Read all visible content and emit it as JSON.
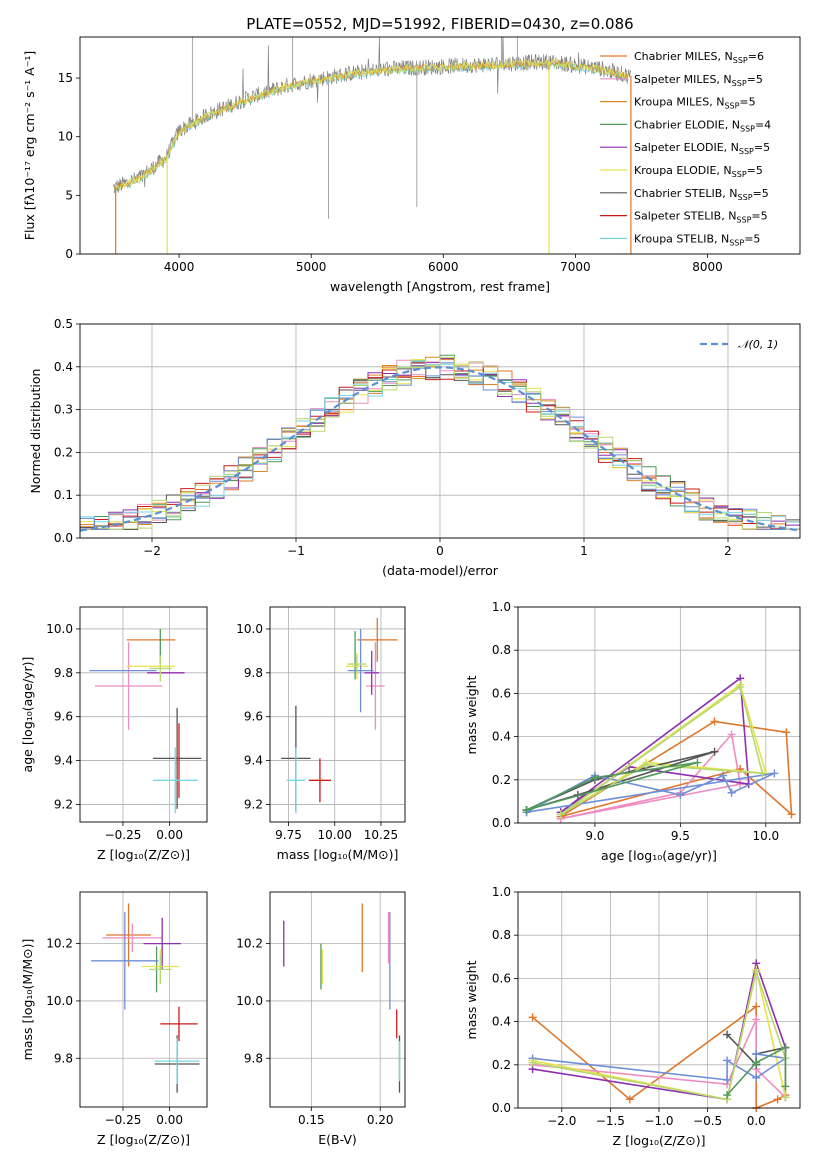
{
  "figure_title": "PLATE=0552, MJD=51992, FIBERID=0430, z=0.086",
  "colors": [
    "#e0762a",
    "#ef8cc0",
    "#d98a22",
    "#4f9a5a",
    "#8e2fb0",
    "#e6e24a",
    "#555555",
    "#cc1a1a",
    "#77d6e6",
    "#6f8fd8",
    "#b8d872"
  ],
  "series_names": [
    "Chabrier MILES",
    "Salpeter MILES",
    "Kroupa MILES",
    "Chabrier ELODIE",
    "Salpeter ELODIE",
    "Kroupa ELODIE",
    "Chabrier STELIB",
    "Salpeter STELIB",
    "Kroupa STELIB"
  ],
  "chart_data": [
    {
      "id": "spectrum",
      "type": "line",
      "title": "PLATE=0552, MJD=51992, FIBERID=0430, z=0.086",
      "xlabel": "wavelength [Angstrom, rest frame]",
      "ylabel": "Flux [fλ10⁻¹⁷ erg cm⁻² s⁻¹ A⁻¹]",
      "xlim": [
        3250,
        8700
      ],
      "ylim": [
        0,
        18.5
      ],
      "xticks": [
        4000,
        5000,
        6000,
        7000,
        8000
      ],
      "yticks": [
        0,
        5,
        10,
        15
      ],
      "continuum": {
        "x": [
          3500,
          3700,
          3900,
          4000,
          4200,
          4500,
          4800,
          5000,
          5300,
          5600,
          6000,
          6400,
          6800,
          7200,
          7400
        ],
        "y": [
          5.6,
          6.5,
          8.2,
          10.5,
          11.8,
          13.2,
          14.3,
          14.8,
          15.4,
          15.8,
          16.0,
          16.2,
          16.4,
          15.8,
          15.2
        ]
      },
      "legend": [
        {
          "label": "Chabrier MILES, N",
          "sub": "SSP",
          "suffix": "=6"
        },
        {
          "label": "Salpeter MILES, N",
          "sub": "SSP",
          "suffix": "=5"
        },
        {
          "label": "Kroupa MILES, N",
          "sub": "SSP",
          "suffix": "=5"
        },
        {
          "label": "Chabrier ELODIE, N",
          "sub": "SSP",
          "suffix": "=4"
        },
        {
          "label": "Salpeter ELODIE, N",
          "sub": "SSP",
          "suffix": "=5"
        },
        {
          "label": "Kroupa ELODIE, N",
          "sub": "SSP",
          "suffix": "=5"
        },
        {
          "label": "Chabrier STELIB, N",
          "sub": "SSP",
          "suffix": "=5"
        },
        {
          "label": "Salpeter STELIB, N",
          "sub": "SSP",
          "suffix": "=5"
        },
        {
          "label": "Kroupa STELIB, N",
          "sub": "SSP",
          "suffix": "=5"
        }
      ],
      "legend_position": "top-right"
    },
    {
      "id": "residuals",
      "type": "histogram",
      "xlabel": "(data-model)/error",
      "ylabel": "Normed distribution",
      "xlim": [
        -2.5,
        2.5
      ],
      "ylim": [
        0,
        0.5
      ],
      "xticks": [
        -2,
        -1,
        0,
        1,
        2
      ],
      "yticks": [
        0.0,
        0.1,
        0.2,
        0.3,
        0.4,
        0.5
      ],
      "bin_width": 0.1,
      "reference_curve": "𝒩(0, 1)",
      "legend_position": "top-right",
      "grid": true
    },
    {
      "id": "age_vs_Z",
      "type": "scatter",
      "xlabel": "Z [log₁₀(Z/Z⊙)]",
      "ylabel": "age  [log₁₀(age/yr)]",
      "xlim": [
        -0.48,
        0.2
      ],
      "ylim": [
        9.12,
        10.1
      ],
      "xticks": [
        -0.25,
        0.0
      ],
      "yticks": [
        9.2,
        9.4,
        9.6,
        9.8,
        10.0
      ],
      "points": [
        {
          "x": -0.1,
          "xerr": 0.13,
          "y": 9.95,
          "yerr": 0.0,
          "c": 0
        },
        {
          "x": -0.22,
          "xerr": 0.18,
          "y": 9.74,
          "yerr": 0.2,
          "c": 1
        },
        {
          "x": -0.05,
          "xerr": 0.0,
          "y": 9.92,
          "yerr": 0.08,
          "c": 3
        },
        {
          "x": -0.02,
          "xerr": 0.1,
          "y": 9.8,
          "yerr": 0.0,
          "c": 4
        },
        {
          "x": -0.1,
          "xerr": 0.13,
          "y": 9.83,
          "yerr": 0.0,
          "c": 5
        },
        {
          "x": -0.25,
          "xerr": 0.18,
          "y": 9.81,
          "yerr": 0.0,
          "c": 9
        },
        {
          "x": 0.04,
          "xerr": 0.13,
          "y": 9.41,
          "yerr": 0.23,
          "c": 6
        },
        {
          "x": 0.05,
          "xerr": 0.0,
          "y": 9.4,
          "yerr": 0.17,
          "c": 7
        },
        {
          "x": 0.03,
          "xerr": 0.12,
          "y": 9.31,
          "yerr": 0.15,
          "c": 8
        },
        {
          "x": -0.05,
          "xerr": 0.06,
          "y": 9.82,
          "yerr": 0.06,
          "c": 10
        }
      ]
    },
    {
      "id": "age_vs_mass",
      "type": "scatter",
      "xlabel": "mass [log₁₀(M/M⊙)]",
      "ylabel": "",
      "xlim": [
        9.65,
        10.38
      ],
      "ylim": [
        9.12,
        10.1
      ],
      "xticks": [
        9.75,
        10.0,
        10.25
      ],
      "yticks": [
        9.2,
        9.4,
        9.6,
        9.8,
        10.0
      ],
      "points": [
        {
          "x": 10.23,
          "xerr": 0.11,
          "y": 9.95,
          "yerr": 0.1,
          "c": 0
        },
        {
          "x": 10.22,
          "xerr": 0.05,
          "y": 9.74,
          "yerr": 0.2,
          "c": 1
        },
        {
          "x": 10.11,
          "xerr": 0.0,
          "y": 9.88,
          "yerr": 0.11,
          "c": 3
        },
        {
          "x": 10.2,
          "xerr": 0.04,
          "y": 9.8,
          "yerr": 0.1,
          "c": 4
        },
        {
          "x": 10.12,
          "xerr": 0.06,
          "y": 9.83,
          "yerr": 0.06,
          "c": 5
        },
        {
          "x": 10.14,
          "xerr": 0.07,
          "y": 9.81,
          "yerr": 0.19,
          "c": 9
        },
        {
          "x": 9.79,
          "xerr": 0.08,
          "y": 9.41,
          "yerr": 0.24,
          "c": 6
        },
        {
          "x": 9.92,
          "xerr": 0.06,
          "y": 9.31,
          "yerr": 0.1,
          "c": 7
        },
        {
          "x": 9.79,
          "xerr": 0.05,
          "y": 9.31,
          "yerr": 0.15,
          "c": 8
        },
        {
          "x": 10.12,
          "xerr": 0.05,
          "y": 9.84,
          "yerr": 0.04,
          "c": 10
        }
      ]
    },
    {
      "id": "weight_vs_age",
      "type": "line",
      "xlabel": "age  [log₁₀(age/yr)]",
      "ylabel": "mass weight",
      "xlim": [
        8.55,
        10.2
      ],
      "ylim": [
        0,
        1.0
      ],
      "xticks": [
        9.0,
        9.5,
        10.0
      ],
      "yticks": [
        0.0,
        0.2,
        0.4,
        0.6,
        0.8,
        1.0
      ],
      "series": [
        {
          "c": 0,
          "x": [
            8.8,
            9.7,
            10.12,
            10.15,
            9.85,
            8.8
          ],
          "y": [
            0.03,
            0.47,
            0.42,
            0.04,
            0.25,
            0.03
          ]
        },
        {
          "c": 1,
          "x": [
            8.8,
            9.5,
            9.8,
            9.85,
            8.8
          ],
          "y": [
            0.02,
            0.14,
            0.41,
            0.18,
            0.02
          ]
        },
        {
          "c": 4,
          "x": [
            8.8,
            9.85,
            9.9,
            9.2,
            8.8
          ],
          "y": [
            0.05,
            0.67,
            0.18,
            0.26,
            0.05
          ]
        },
        {
          "c": 5,
          "x": [
            8.8,
            9.85,
            10.0,
            9.3,
            8.8
          ],
          "y": [
            0.04,
            0.64,
            0.23,
            0.28,
            0.04
          ]
        },
        {
          "c": 6,
          "x": [
            8.6,
            8.9,
            9.7,
            9.0,
            8.6
          ],
          "y": [
            0.06,
            0.13,
            0.33,
            0.2,
            0.06
          ]
        },
        {
          "c": 9,
          "x": [
            8.6,
            9.0,
            9.5,
            9.75,
            9.8,
            10.05,
            8.6
          ],
          "y": [
            0.05,
            0.22,
            0.13,
            0.22,
            0.14,
            0.23,
            0.05
          ]
        },
        {
          "c": 10,
          "x": [
            8.8,
            9.85,
            9.98,
            9.3,
            8.8
          ],
          "y": [
            0.04,
            0.63,
            0.23,
            0.27,
            0.04
          ]
        },
        {
          "c": 3,
          "x": [
            8.6,
            9.0,
            9.6,
            8.6
          ],
          "y": [
            0.06,
            0.21,
            0.28,
            0.06
          ]
        }
      ]
    },
    {
      "id": "mass_vs_Z",
      "type": "scatter",
      "xlabel": "Z [log₁₀(Z/Z⊙)]",
      "ylabel": "mass [log₁₀(M/M⊙)]",
      "xlim": [
        -0.48,
        0.2
      ],
      "ylim": [
        9.63,
        10.38
      ],
      "xticks": [
        -0.25,
        0.0
      ],
      "yticks": [
        9.8,
        10.0,
        10.2
      ],
      "points": [
        {
          "x": -0.22,
          "xerr": 0.12,
          "y": 10.23,
          "yerr": 0.11,
          "c": 0
        },
        {
          "x": -0.2,
          "xerr": 0.16,
          "y": 10.22,
          "yerr": 0.05,
          "c": 1
        },
        {
          "x": -0.07,
          "xerr": 0.0,
          "y": 10.11,
          "yerr": 0.08,
          "c": 3
        },
        {
          "x": -0.04,
          "xerr": 0.1,
          "y": 10.2,
          "yerr": 0.09,
          "c": 4
        },
        {
          "x": -0.05,
          "xerr": 0.1,
          "y": 10.12,
          "yerr": 0.06,
          "c": 5
        },
        {
          "x": -0.24,
          "xerr": 0.18,
          "y": 10.14,
          "yerr": 0.17,
          "c": 9
        },
        {
          "x": 0.04,
          "xerr": 0.12,
          "y": 9.78,
          "yerr": 0.1,
          "c": 6
        },
        {
          "x": 0.05,
          "xerr": 0.1,
          "y": 9.92,
          "yerr": 0.06,
          "c": 7
        },
        {
          "x": 0.04,
          "xerr": 0.12,
          "y": 9.79,
          "yerr": 0.08,
          "c": 8
        },
        {
          "x": -0.05,
          "xerr": 0.06,
          "y": 10.11,
          "yerr": 0.05,
          "c": 10
        }
      ]
    },
    {
      "id": "mass_vs_EBV",
      "type": "scatter",
      "xlabel": "E(B-V)",
      "ylabel": "",
      "xlim": [
        0.12,
        0.218
      ],
      "ylim": [
        9.63,
        10.38
      ],
      "xticks": [
        0.15,
        0.2
      ],
      "yticks": [
        9.8,
        10.0,
        10.2
      ],
      "points": [
        {
          "x": 0.187,
          "xerr": 0.0,
          "y": 10.22,
          "yerr": 0.12,
          "c": 0
        },
        {
          "x": 0.206,
          "xerr": 0.0,
          "y": 10.22,
          "yerr": 0.09,
          "c": 1
        },
        {
          "x": 0.157,
          "xerr": 0.0,
          "y": 10.12,
          "yerr": 0.08,
          "c": 3
        },
        {
          "x": 0.13,
          "xerr": 0.0,
          "y": 10.2,
          "yerr": 0.08,
          "c": 4
        },
        {
          "x": 0.158,
          "xerr": 0.0,
          "y": 10.12,
          "yerr": 0.06,
          "c": 5
        },
        {
          "x": 0.207,
          "xerr": 0.0,
          "y": 10.14,
          "yerr": 0.17,
          "c": 9
        },
        {
          "x": 0.214,
          "xerr": 0.0,
          "y": 9.78,
          "yerr": 0.1,
          "c": 6
        },
        {
          "x": 0.212,
          "xerr": 0.0,
          "y": 9.92,
          "yerr": 0.05,
          "c": 7
        },
        {
          "x": 0.214,
          "xerr": 0.0,
          "y": 9.79,
          "yerr": 0.07,
          "c": 8
        }
      ]
    },
    {
      "id": "weight_vs_Z",
      "type": "line",
      "xlabel": "Z [log₁₀(Z/Z⊙)]",
      "ylabel": "mass weight",
      "xlim": [
        -2.45,
        0.45
      ],
      "ylim": [
        0,
        1.0
      ],
      "xticks": [
        -2.0,
        -1.5,
        -1.0,
        -0.5,
        0.0
      ],
      "yticks": [
        0.0,
        0.2,
        0.4,
        0.6,
        0.8,
        1.0
      ],
      "series": [
        {
          "c": 0,
          "x": [
            -2.3,
            -1.3,
            0.0,
            0.0,
            0.22,
            0.3
          ],
          "y": [
            0.42,
            0.04,
            0.47,
            0.0,
            0.04,
            0.06
          ]
        },
        {
          "c": 1,
          "x": [
            -2.3,
            -0.3,
            0.0,
            0.0,
            0.3
          ],
          "y": [
            0.2,
            0.11,
            0.41,
            0.18,
            0.05
          ]
        },
        {
          "c": 4,
          "x": [
            -2.3,
            -0.3,
            0.0,
            0.3,
            0.3
          ],
          "y": [
            0.18,
            0.04,
            0.67,
            0.28,
            0.05
          ]
        },
        {
          "c": 5,
          "x": [
            -2.3,
            -0.3,
            0.0,
            0.3
          ],
          "y": [
            0.22,
            0.04,
            0.64,
            0.05
          ]
        },
        {
          "c": 6,
          "x": [
            -0.3,
            0.0,
            0.0,
            0.3
          ],
          "y": [
            0.34,
            0.2,
            0.25,
            0.28
          ]
        },
        {
          "c": 9,
          "x": [
            -2.3,
            -0.3,
            -0.3,
            0.0,
            0.3,
            0.0
          ],
          "y": [
            0.23,
            0.13,
            0.22,
            0.14,
            0.23,
            0.25
          ]
        },
        {
          "c": 10,
          "x": [
            -2.3,
            -0.3,
            0.0,
            0.3,
            0.3
          ],
          "y": [
            0.21,
            0.04,
            0.63,
            0.23,
            0.05
          ]
        },
        {
          "c": 3,
          "x": [
            -0.3,
            0.0,
            0.3,
            0.3
          ],
          "y": [
            0.06,
            0.21,
            0.28,
            0.1
          ]
        }
      ]
    }
  ]
}
